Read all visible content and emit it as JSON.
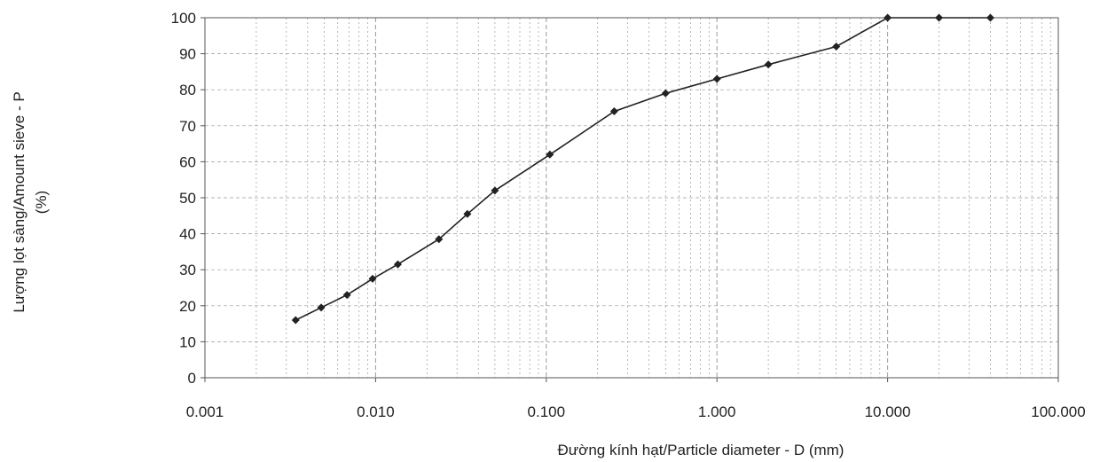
{
  "chart_data": {
    "type": "scatter",
    "x_scale": "log",
    "xlabel": "Đường kính hạt/Particle diameter - D (mm)",
    "ylabel_lines": [
      "Lượng lọt sàng/Amount sieve - P",
      "(%)"
    ],
    "xlim": [
      0.001,
      100
    ],
    "ylim": [
      0,
      100
    ],
    "x_ticks": [
      "0.001",
      "0.010",
      "0.100",
      "1.000",
      "10.000",
      "100.000"
    ],
    "y_ticks": [
      "0",
      "10",
      "20",
      "30",
      "40",
      "50",
      "60",
      "70",
      "80",
      "90",
      "100"
    ],
    "grid": true,
    "legend": "none",
    "series": [
      {
        "x": [
          0.0034,
          0.0048,
          0.0068,
          0.0096,
          0.0135,
          0.0235,
          0.0345,
          0.05,
          0.105,
          0.25,
          0.5,
          1.0,
          2.0,
          5.0,
          10.0,
          20.0,
          40.0
        ],
        "y": [
          16,
          19.5,
          23,
          27.5,
          31.5,
          38.5,
          45.5,
          52,
          62,
          74,
          79,
          83,
          87,
          92,
          100,
          100,
          100
        ]
      }
    ],
    "colors": {
      "line": "#222222",
      "marker": "#222222",
      "grid": "#9a9a9a",
      "frame": "#555555"
    }
  }
}
